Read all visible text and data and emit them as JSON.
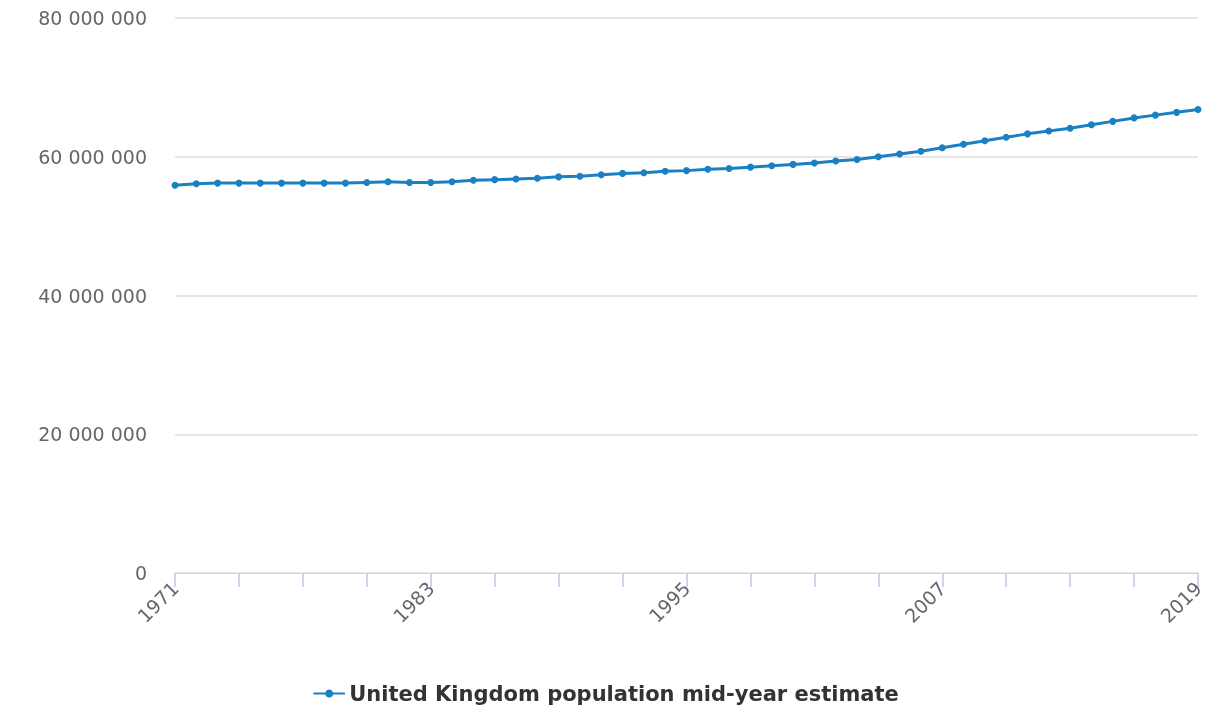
{
  "chart_data": {
    "type": "line",
    "x": [
      1971,
      1972,
      1973,
      1974,
      1975,
      1976,
      1977,
      1978,
      1979,
      1980,
      1981,
      1982,
      1983,
      1984,
      1985,
      1986,
      1987,
      1988,
      1989,
      1990,
      1991,
      1992,
      1993,
      1994,
      1995,
      1996,
      1997,
      1998,
      1999,
      2000,
      2001,
      2002,
      2003,
      2004,
      2005,
      2006,
      2007,
      2008,
      2009,
      2010,
      2011,
      2012,
      2013,
      2014,
      2015,
      2016,
      2017,
      2018,
      2019
    ],
    "series": [
      {
        "name": "United Kingdom population mid-year estimate",
        "color": "#1a80c4",
        "values": [
          55900000,
          56100000,
          56200000,
          56200000,
          56200000,
          56200000,
          56200000,
          56200000,
          56200000,
          56300000,
          56400000,
          56300000,
          56300000,
          56400000,
          56600000,
          56700000,
          56800000,
          56900000,
          57100000,
          57200000,
          57400000,
          57600000,
          57700000,
          57900000,
          58000000,
          58200000,
          58300000,
          58500000,
          58700000,
          58900000,
          59100000,
          59400000,
          59600000,
          60000000,
          60400000,
          60800000,
          61300000,
          61800000,
          62300000,
          62800000,
          63300000,
          63700000,
          64100000,
          64600000,
          65100000,
          65600000,
          66000000,
          66400000,
          66800000
        ]
      }
    ],
    "xlim": [
      1971,
      2019
    ],
    "xticks": [
      1971,
      {
        "value": 1974,
        "label": null
      },
      {
        "value": 1977,
        "label": null
      },
      {
        "value": 1980,
        "label": null
      },
      1983,
      {
        "value": 1986,
        "label": null
      },
      {
        "value": 1989,
        "label": null
      },
      {
        "value": 1992,
        "label": null
      },
      1995,
      {
        "value": 1998,
        "label": null
      },
      {
        "value": 2001,
        "label": null
      },
      {
        "value": 2004,
        "label": null
      },
      2007,
      {
        "value": 2010,
        "label": null
      },
      {
        "value": 2013,
        "label": null
      },
      {
        "value": 2016,
        "label": null
      },
      2019
    ],
    "ylim": [
      0,
      80000000
    ],
    "yticks": [
      0,
      {
        "value": 20000000,
        "label": "20 000 000"
      },
      {
        "value": 40000000,
        "label": "40 000 000"
      },
      {
        "value": 60000000,
        "label": "60 000 000"
      },
      {
        "value": 80000000,
        "label": "80 000 000"
      }
    ],
    "grid": "y",
    "legend": "bottom",
    "marker": "circle",
    "line_style": "solid"
  }
}
